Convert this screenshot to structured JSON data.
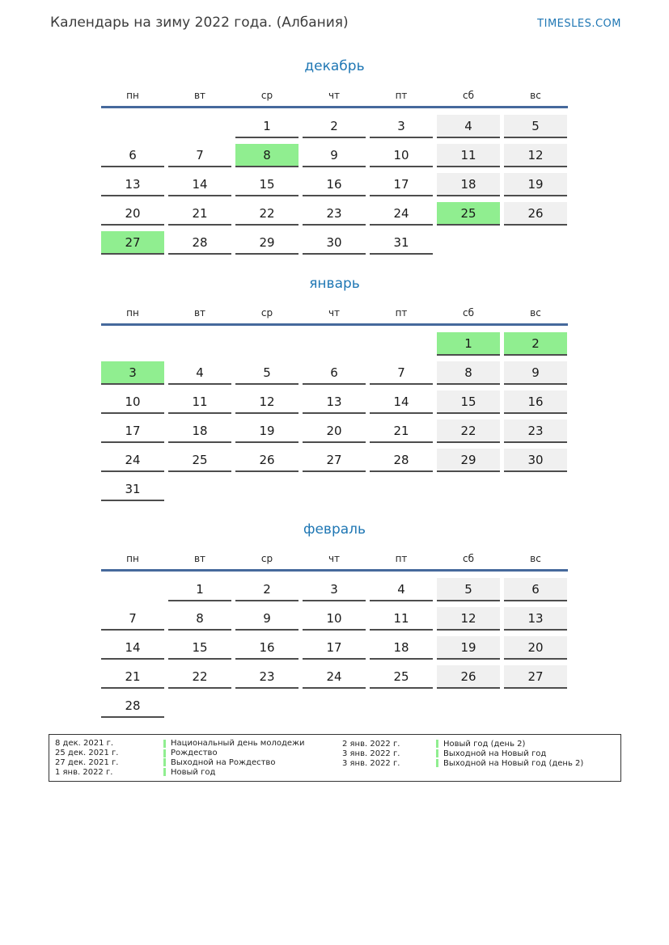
{
  "page": {
    "title": "Календарь на зиму 2022 года. (Албания)",
    "brand": "TIMESLES.COM"
  },
  "colors": {
    "accent_blue": "#1f77b4",
    "rule_blue": "#46699c",
    "holiday_green": "#90ee90",
    "weekend_gray": "#f0f0f0",
    "cell_underline": "#4d4d4d"
  },
  "weekday_headers": [
    "пн",
    "вт",
    "ср",
    "чт",
    "пт",
    "сб",
    "вс"
  ],
  "months": [
    {
      "name": "декабрь",
      "weeks": [
        [
          {
            "d": "",
            "t": "empty"
          },
          {
            "d": "",
            "t": "empty"
          },
          {
            "d": "1",
            "t": "work"
          },
          {
            "d": "2",
            "t": "work"
          },
          {
            "d": "3",
            "t": "work"
          },
          {
            "d": "4",
            "t": "weekend"
          },
          {
            "d": "5",
            "t": "weekend"
          }
        ],
        [
          {
            "d": "6",
            "t": "work"
          },
          {
            "d": "7",
            "t": "work"
          },
          {
            "d": "8",
            "t": "holiday"
          },
          {
            "d": "9",
            "t": "work"
          },
          {
            "d": "10",
            "t": "work"
          },
          {
            "d": "11",
            "t": "weekend"
          },
          {
            "d": "12",
            "t": "weekend"
          }
        ],
        [
          {
            "d": "13",
            "t": "work"
          },
          {
            "d": "14",
            "t": "work"
          },
          {
            "d": "15",
            "t": "work"
          },
          {
            "d": "16",
            "t": "work"
          },
          {
            "d": "17",
            "t": "work"
          },
          {
            "d": "18",
            "t": "weekend"
          },
          {
            "d": "19",
            "t": "weekend"
          }
        ],
        [
          {
            "d": "20",
            "t": "work"
          },
          {
            "d": "21",
            "t": "work"
          },
          {
            "d": "22",
            "t": "work"
          },
          {
            "d": "23",
            "t": "work"
          },
          {
            "d": "24",
            "t": "work"
          },
          {
            "d": "25",
            "t": "holiday"
          },
          {
            "d": "26",
            "t": "weekend"
          }
        ],
        [
          {
            "d": "27",
            "t": "holiday"
          },
          {
            "d": "28",
            "t": "work"
          },
          {
            "d": "29",
            "t": "work"
          },
          {
            "d": "30",
            "t": "work"
          },
          {
            "d": "31",
            "t": "work"
          },
          {
            "d": "",
            "t": "empty"
          },
          {
            "d": "",
            "t": "empty"
          }
        ]
      ]
    },
    {
      "name": "январь",
      "weeks": [
        [
          {
            "d": "",
            "t": "empty"
          },
          {
            "d": "",
            "t": "empty"
          },
          {
            "d": "",
            "t": "empty"
          },
          {
            "d": "",
            "t": "empty"
          },
          {
            "d": "",
            "t": "empty"
          },
          {
            "d": "1",
            "t": "holiday"
          },
          {
            "d": "2",
            "t": "holiday"
          }
        ],
        [
          {
            "d": "3",
            "t": "holiday"
          },
          {
            "d": "4",
            "t": "work"
          },
          {
            "d": "5",
            "t": "work"
          },
          {
            "d": "6",
            "t": "work"
          },
          {
            "d": "7",
            "t": "work"
          },
          {
            "d": "8",
            "t": "weekend"
          },
          {
            "d": "9",
            "t": "weekend"
          }
        ],
        [
          {
            "d": "10",
            "t": "work"
          },
          {
            "d": "11",
            "t": "work"
          },
          {
            "d": "12",
            "t": "work"
          },
          {
            "d": "13",
            "t": "work"
          },
          {
            "d": "14",
            "t": "work"
          },
          {
            "d": "15",
            "t": "weekend"
          },
          {
            "d": "16",
            "t": "weekend"
          }
        ],
        [
          {
            "d": "17",
            "t": "work"
          },
          {
            "d": "18",
            "t": "work"
          },
          {
            "d": "19",
            "t": "work"
          },
          {
            "d": "20",
            "t": "work"
          },
          {
            "d": "21",
            "t": "work"
          },
          {
            "d": "22",
            "t": "weekend"
          },
          {
            "d": "23",
            "t": "weekend"
          }
        ],
        [
          {
            "d": "24",
            "t": "work"
          },
          {
            "d": "25",
            "t": "work"
          },
          {
            "d": "26",
            "t": "work"
          },
          {
            "d": "27",
            "t": "work"
          },
          {
            "d": "28",
            "t": "work"
          },
          {
            "d": "29",
            "t": "weekend"
          },
          {
            "d": "30",
            "t": "weekend"
          }
        ],
        [
          {
            "d": "31",
            "t": "work"
          },
          {
            "d": "",
            "t": "empty"
          },
          {
            "d": "",
            "t": "empty"
          },
          {
            "d": "",
            "t": "empty"
          },
          {
            "d": "",
            "t": "empty"
          },
          {
            "d": "",
            "t": "empty"
          },
          {
            "d": "",
            "t": "empty"
          }
        ]
      ]
    },
    {
      "name": "февраль",
      "weeks": [
        [
          {
            "d": "",
            "t": "empty"
          },
          {
            "d": "1",
            "t": "work"
          },
          {
            "d": "2",
            "t": "work"
          },
          {
            "d": "3",
            "t": "work"
          },
          {
            "d": "4",
            "t": "work"
          },
          {
            "d": "5",
            "t": "weekend"
          },
          {
            "d": "6",
            "t": "weekend"
          }
        ],
        [
          {
            "d": "7",
            "t": "work"
          },
          {
            "d": "8",
            "t": "work"
          },
          {
            "d": "9",
            "t": "work"
          },
          {
            "d": "10",
            "t": "work"
          },
          {
            "d": "11",
            "t": "work"
          },
          {
            "d": "12",
            "t": "weekend"
          },
          {
            "d": "13",
            "t": "weekend"
          }
        ],
        [
          {
            "d": "14",
            "t": "work"
          },
          {
            "d": "15",
            "t": "work"
          },
          {
            "d": "16",
            "t": "work"
          },
          {
            "d": "17",
            "t": "work"
          },
          {
            "d": "18",
            "t": "work"
          },
          {
            "d": "19",
            "t": "weekend"
          },
          {
            "d": "20",
            "t": "weekend"
          }
        ],
        [
          {
            "d": "21",
            "t": "work"
          },
          {
            "d": "22",
            "t": "work"
          },
          {
            "d": "23",
            "t": "work"
          },
          {
            "d": "24",
            "t": "work"
          },
          {
            "d": "25",
            "t": "work"
          },
          {
            "d": "26",
            "t": "weekend"
          },
          {
            "d": "27",
            "t": "weekend"
          }
        ],
        [
          {
            "d": "28",
            "t": "work"
          },
          {
            "d": "",
            "t": "empty"
          },
          {
            "d": "",
            "t": "empty"
          },
          {
            "d": "",
            "t": "empty"
          },
          {
            "d": "",
            "t": "empty"
          },
          {
            "d": "",
            "t": "empty"
          },
          {
            "d": "",
            "t": "empty"
          }
        ]
      ]
    }
  ],
  "legend": {
    "columns": [
      {
        "entries": [
          {
            "date": "8 дек. 2021 г.",
            "label": "Национальный день молодежи"
          },
          {
            "date": "25 дек. 2021 г.",
            "label": "Рождество"
          },
          {
            "date": "27 дек. 2021 г.",
            "label": "Выходной на Рождество"
          },
          {
            "date": "1 янв. 2022 г.",
            "label": "Новый год"
          }
        ]
      },
      {
        "entries": [
          {
            "date": "2 янв. 2022 г.",
            "label": "Новый год (день 2)"
          },
          {
            "date": "3 янв. 2022 г.",
            "label": "Выходной на Новый год"
          },
          {
            "date": "3 янв. 2022 г.",
            "label": "Выходной на Новый год (день 2)"
          }
        ]
      }
    ]
  }
}
